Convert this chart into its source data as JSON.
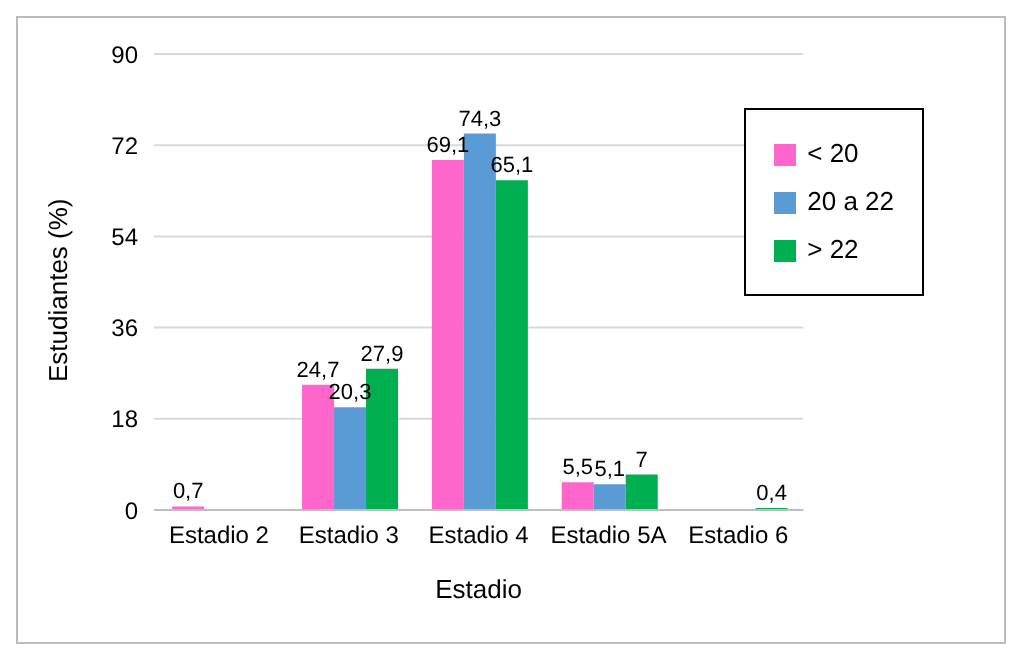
{
  "chart_data": {
    "type": "bar",
    "xlabel": "Estadio",
    "ylabel": "Estudiantes (%)",
    "categories": [
      "Estadio 2",
      "Estadio 3",
      "Estadio 4",
      "Estadio 5A",
      "Estadio 6"
    ],
    "series": [
      {
        "name": "< 20",
        "color": "#ff66cc",
        "values": [
          0.7,
          24.7,
          69.1,
          5.5,
          null
        ],
        "value_labels": [
          "0,7",
          "24,7",
          "69,1",
          "5,5",
          null
        ]
      },
      {
        "name": "20 a 22",
        "color": "#5b9bd5",
        "values": [
          null,
          20.3,
          74.3,
          5.1,
          null
        ],
        "value_labels": [
          null,
          "20,3",
          "74,3",
          "5,1",
          null
        ]
      },
      {
        "name": "> 22",
        "color": "#00b050",
        "values": [
          null,
          27.9,
          65.1,
          7,
          0.4
        ],
        "value_labels": [
          null,
          "27,9",
          "65,1",
          "7",
          "0,4"
        ]
      }
    ],
    "ylim": [
      0,
      90
    ],
    "yticks": [
      0,
      18,
      36,
      54,
      72,
      90
    ],
    "grid": "y",
    "legend": "top right"
  }
}
